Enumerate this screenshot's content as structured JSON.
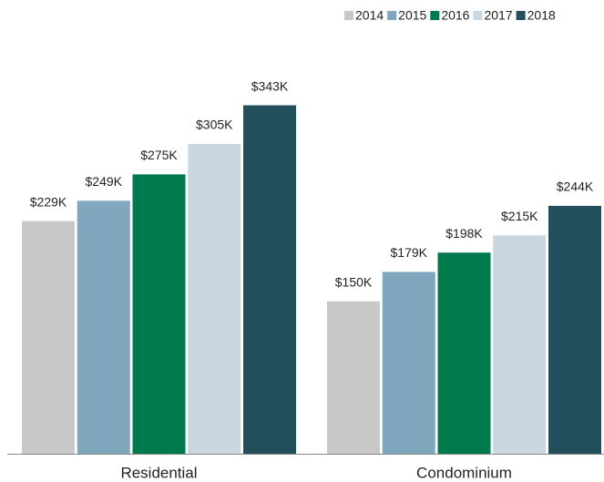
{
  "chart_data": {
    "type": "bar",
    "categories": [
      "Residential",
      "Condominium"
    ],
    "series": [
      {
        "name": "2014",
        "color": "#c8c8c8",
        "values": [
          229,
          150
        ],
        "value_labels": [
          "$229K",
          "$150K"
        ]
      },
      {
        "name": "2015",
        "color": "#7fa8bf",
        "values": [
          249,
          179
        ],
        "value_labels": [
          "$249K",
          "$179K"
        ]
      },
      {
        "name": "2016",
        "color": "#007a4d",
        "values": [
          275,
          198
        ],
        "value_labels": [
          "$275K",
          "$198K"
        ]
      },
      {
        "name": "2017",
        "color": "#c9d7e0",
        "values": [
          305,
          215
        ],
        "value_labels": [
          "$305K",
          "$215K"
        ]
      },
      {
        "name": "2018",
        "color": "#234e5c",
        "values": [
          343,
          244
        ],
        "value_labels": [
          "$343K",
          "$244K"
        ]
      }
    ],
    "ylim": [
      0,
      400
    ],
    "legend": "top-right"
  }
}
